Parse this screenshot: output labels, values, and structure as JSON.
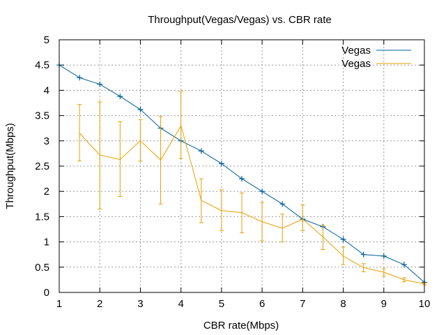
{
  "chart_data": {
    "type": "line",
    "title": "Throughput(Vegas/Vegas) vs. CBR rate",
    "xlabel": "CBR rate(Mbps)",
    "ylabel": "Throughput(Mbps)",
    "xlim": [
      1,
      10
    ],
    "ylim": [
      0,
      5
    ],
    "x_ticks": [
      1,
      2,
      3,
      4,
      5,
      6,
      7,
      8,
      9,
      10
    ],
    "y_ticks": [
      0,
      0.5,
      1,
      1.5,
      2,
      2.5,
      3,
      3.5,
      4,
      4.5,
      5
    ],
    "grid": true,
    "legend_position": "top-right",
    "series": [
      {
        "name": "Vegas",
        "color": "#005f9a",
        "marker": "plus",
        "x": [
          1,
          1.5,
          2,
          2.5,
          3,
          3.5,
          4,
          4.5,
          5,
          5.5,
          6,
          6.5,
          7,
          7.5,
          8,
          8.5,
          9,
          9.5,
          10
        ],
        "y": [
          4.5,
          4.25,
          4.12,
          3.88,
          3.62,
          3.25,
          3.0,
          2.8,
          2.55,
          2.25,
          2.0,
          1.75,
          1.45,
          1.3,
          1.05,
          0.75,
          0.72,
          0.55,
          0.2
        ]
      },
      {
        "name": "Vegas",
        "color": "#e69f00",
        "marker": "errorbar",
        "x": [
          1.5,
          2,
          2.5,
          3,
          3.5,
          4,
          4.5,
          5,
          5.5,
          6,
          6.5,
          7,
          7.5,
          8,
          8.5,
          9,
          9.5,
          10
        ],
        "y": [
          3.15,
          2.72,
          2.63,
          3.0,
          2.62,
          3.3,
          1.82,
          1.62,
          1.58,
          1.4,
          1.27,
          1.45,
          1.1,
          0.72,
          0.49,
          0.4,
          0.25,
          0.17
        ],
        "y_low": [
          2.6,
          1.65,
          1.9,
          2.6,
          1.75,
          2.65,
          1.38,
          1.22,
          1.18,
          1.02,
          1.0,
          1.22,
          0.85,
          0.55,
          0.41,
          0.32,
          0.21,
          0.15
        ],
        "y_high": [
          3.72,
          3.77,
          3.38,
          3.42,
          3.48,
          3.98,
          2.25,
          2.03,
          1.97,
          1.78,
          1.55,
          1.73,
          1.33,
          0.9,
          0.57,
          0.47,
          0.29,
          0.19
        ]
      }
    ]
  }
}
